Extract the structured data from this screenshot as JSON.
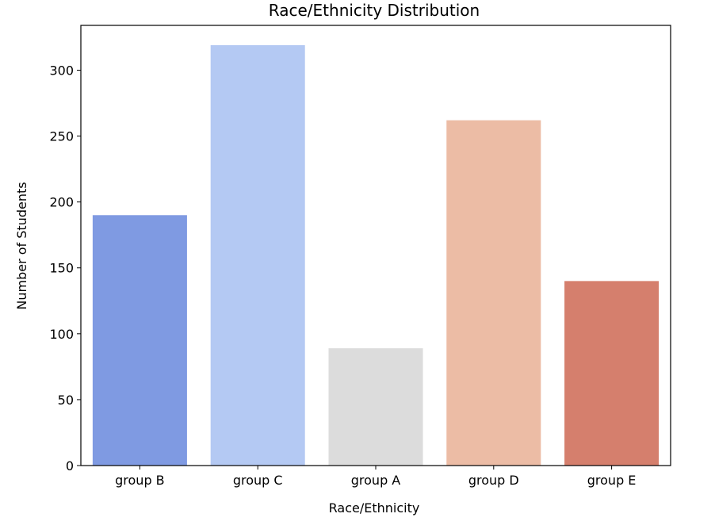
{
  "chart_data": {
    "type": "bar",
    "title": "Race/Ethnicity Distribution",
    "xlabel": "Race/Ethnicity",
    "ylabel": "Number of Students",
    "categories": [
      "group B",
      "group C",
      "group A",
      "group D",
      "group E"
    ],
    "values": [
      190,
      319,
      89,
      262,
      140
    ],
    "colors": [
      "#7f9ae2",
      "#b4c9f3",
      "#dcdcdc",
      "#ecbca5",
      "#d57f6d"
    ],
    "ylim": [
      0,
      334
    ],
    "yticks": [
      0,
      50,
      100,
      150,
      200,
      250,
      300
    ],
    "grid": false,
    "legend": "none"
  }
}
